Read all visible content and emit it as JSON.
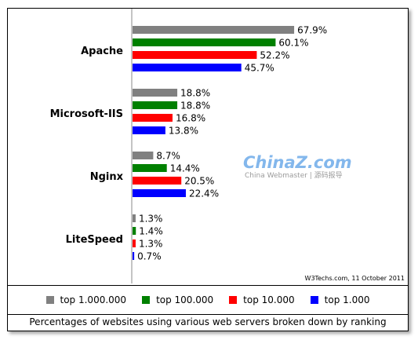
{
  "chart_data": {
    "type": "bar",
    "orientation": "horizontal",
    "categories": [
      "Apache",
      "Microsoft-IIS",
      "Nginx",
      "LiteSpeed"
    ],
    "series": [
      {
        "name": "top 1.000.000",
        "color": "#808080",
        "values": [
          67.9,
          18.8,
          8.7,
          1.3
        ],
        "labels": [
          "67.9%",
          "18.8%",
          "8.7%",
          "1.3%"
        ]
      },
      {
        "name": "top 100.000",
        "color": "#008000",
        "values": [
          60.1,
          18.8,
          14.4,
          1.4
        ],
        "labels": [
          "60.1%",
          "18.8%",
          "14.4%",
          "1.4%"
        ]
      },
      {
        "name": "top 10.000",
        "color": "#ff0000",
        "values": [
          52.2,
          16.8,
          20.5,
          1.3
        ],
        "labels": [
          "52.2%",
          "16.8%",
          "20.5%",
          "1.3%"
        ]
      },
      {
        "name": "top 1.000",
        "color": "#0000ff",
        "values": [
          45.7,
          13.8,
          22.4,
          0.7
        ],
        "labels": [
          "45.7%",
          "13.8%",
          "22.4%",
          "0.7%"
        ]
      }
    ],
    "xlim": [
      0,
      100
    ],
    "grid": false,
    "legend_position": "bottom",
    "credit": "W3Techs.com, 11 October 2011"
  },
  "caption": "Percentages of websites using various web servers broken down by ranking",
  "watermark": {
    "main": "ChinaZ.com",
    "sub": "China Webmaster | 源码报导"
  }
}
